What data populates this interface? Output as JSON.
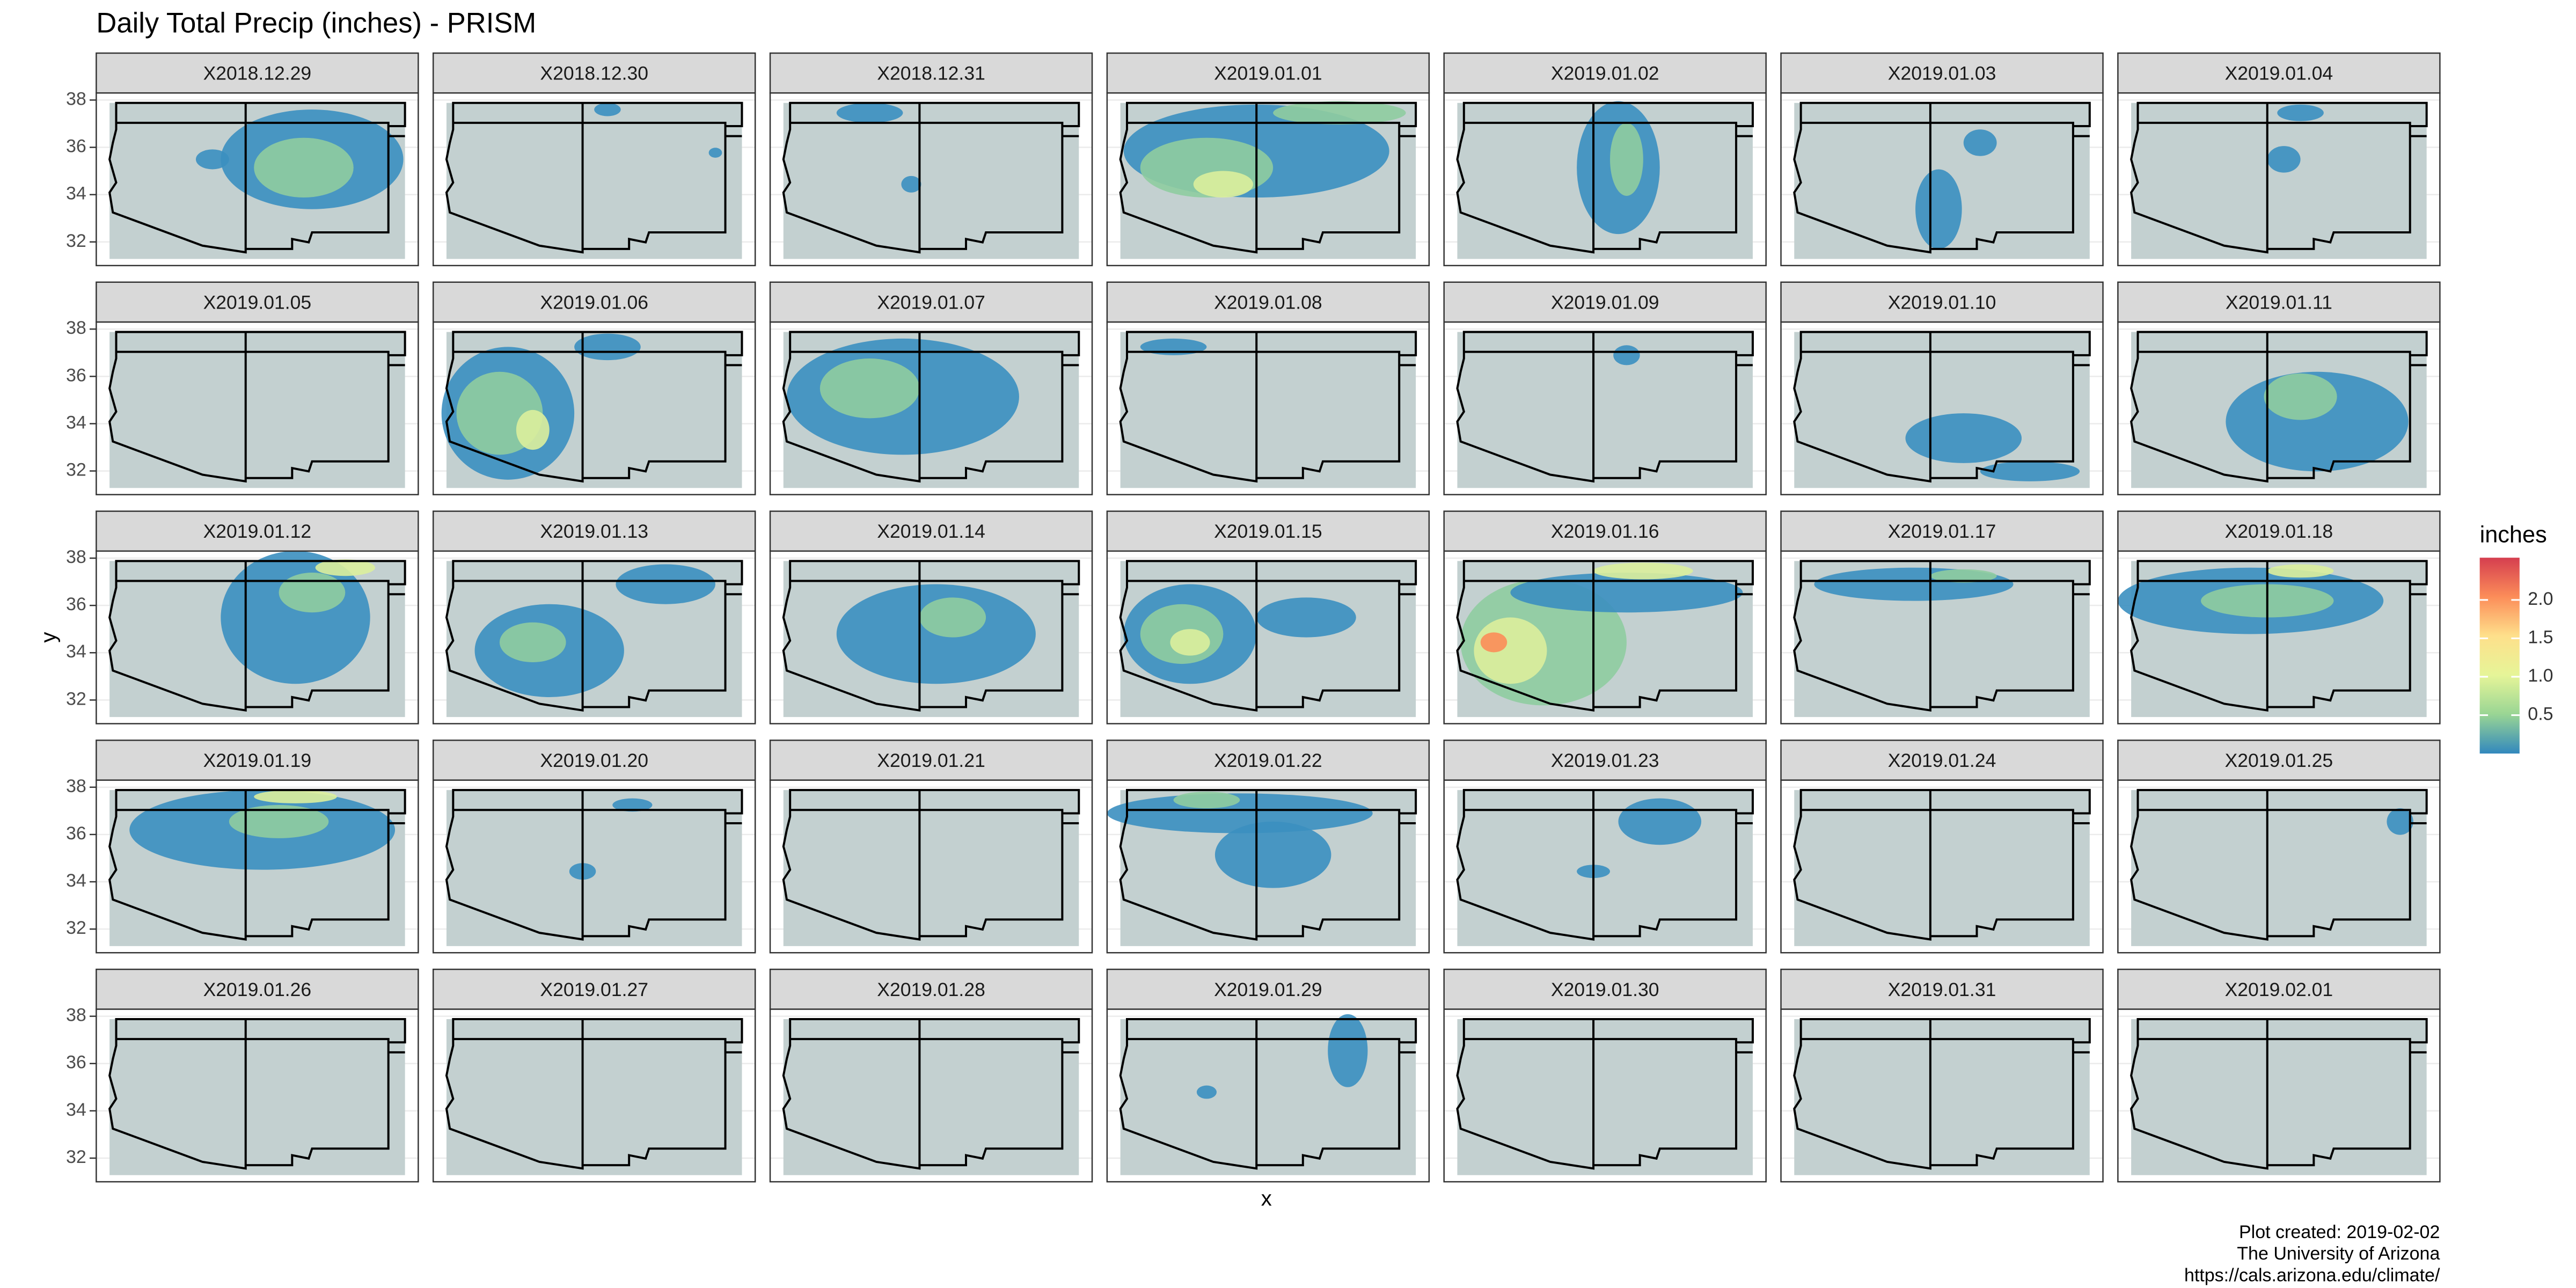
{
  "chart_data": {
    "type": "raster-facet",
    "title": "Daily Total Precip (inches) - PRISM",
    "x_label": "x",
    "y_label": "y",
    "panels": [
      "X2018.12.29",
      "X2018.12.30",
      "X2018.12.31",
      "X2019.01.01",
      "X2019.01.02",
      "X2019.01.03",
      "X2019.01.04",
      "X2019.01.05",
      "X2019.01.06",
      "X2019.01.07",
      "X2019.01.08",
      "X2019.01.09",
      "X2019.01.10",
      "X2019.01.11",
      "X2019.01.12",
      "X2019.01.13",
      "X2019.01.14",
      "X2019.01.15",
      "X2019.01.16",
      "X2019.01.17",
      "X2019.01.18",
      "X2019.01.19",
      "X2019.01.20",
      "X2019.01.21",
      "X2019.01.22",
      "X2019.01.23",
      "X2019.01.24",
      "X2019.01.25",
      "X2019.01.26",
      "X2019.01.27",
      "X2019.01.28",
      "X2019.01.29",
      "X2019.01.30",
      "X2019.01.31",
      "X2019.02.01"
    ],
    "ylim": [
      31,
      38.3
    ],
    "yticks": [
      32,
      34,
      36,
      38
    ],
    "grid": true,
    "legend": {
      "title": "inches",
      "clim": [
        0,
        2.55
      ],
      "ticks": [
        0.5,
        {
          "value": 1,
          "label": "1.0"
        },
        1.5,
        {
          "value": 2,
          "label": "2.0"
        }
      ],
      "colorscale": [
        "#3288bd",
        "#99d594",
        "#e6f598",
        "#fee08b",
        "#fc8d59",
        "#d53e4f"
      ]
    },
    "caption": [
      "Plot created: 2019-02-02",
      "The University of Arizona",
      "https://cals.arizona.edu/climate/"
    ]
  }
}
